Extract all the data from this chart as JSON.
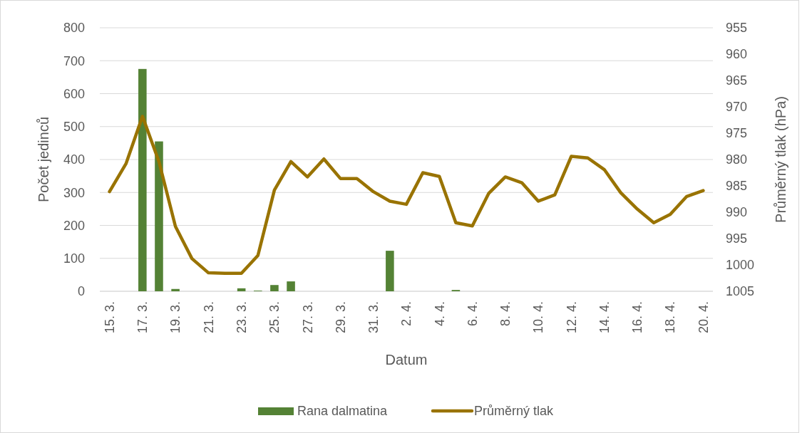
{
  "chart_data": {
    "type": "bar",
    "xlabel": "Datum",
    "ylabel": "Počet jedinců",
    "y2label": "Průměrný tlak (hPa)",
    "categories": [
      "15. 3.",
      null,
      "17. 3.",
      null,
      "19. 3.",
      null,
      "21. 3.",
      null,
      "23. 3.",
      null,
      "25. 3.",
      null,
      "27. 3.",
      null,
      "29. 3.",
      null,
      "31. 3.",
      null,
      "2. 4.",
      null,
      "4. 4.",
      null,
      "6. 4.",
      null,
      "8. 4.",
      null,
      "10. 4.",
      null,
      "12. 4.",
      null,
      "14. 4.",
      null,
      "16. 4.",
      null,
      "18. 4.",
      null,
      "20. 4."
    ],
    "series": [
      {
        "name": "Rana dalmatina",
        "color": "#548235",
        "values": [
          0,
          0,
          675,
          455,
          7,
          0,
          0,
          0,
          9,
          2,
          19,
          30,
          0,
          0,
          0,
          0,
          0,
          123,
          0,
          0,
          0,
          4,
          0,
          0,
          0,
          0,
          0,
          0,
          0,
          0,
          0,
          0,
          null,
          0,
          0,
          0,
          0
        ]
      },
      {
        "name": "Průměrný tlak",
        "type": "line",
        "axis": "y2",
        "color": "#997300",
        "values": [
          986.1,
          980.8,
          971.8,
          980.4,
          992.7,
          998.8,
          1001.5,
          1001.6,
          1001.6,
          998.2,
          985.8,
          980.4,
          983.3,
          979.9,
          983.6,
          983.6,
          986.1,
          987.9,
          988.5,
          982.5,
          983.2,
          992.0,
          992.6,
          986.4,
          983.3,
          984.4,
          987.9,
          986.7,
          979.4,
          979.7,
          981.9,
          986.3,
          989.4,
          992.0,
          990.4,
          987.0,
          985.9
        ]
      }
    ],
    "ylim": [
      0,
      800
    ],
    "yticks": [
      0,
      100,
      200,
      300,
      400,
      500,
      600,
      700,
      800
    ],
    "y2lim": [
      1005,
      955
    ],
    "y2ticks": [
      1005,
      1000,
      995,
      990,
      985,
      980,
      975,
      970,
      965,
      960,
      955
    ],
    "grid": "y",
    "legend": "bottom"
  }
}
